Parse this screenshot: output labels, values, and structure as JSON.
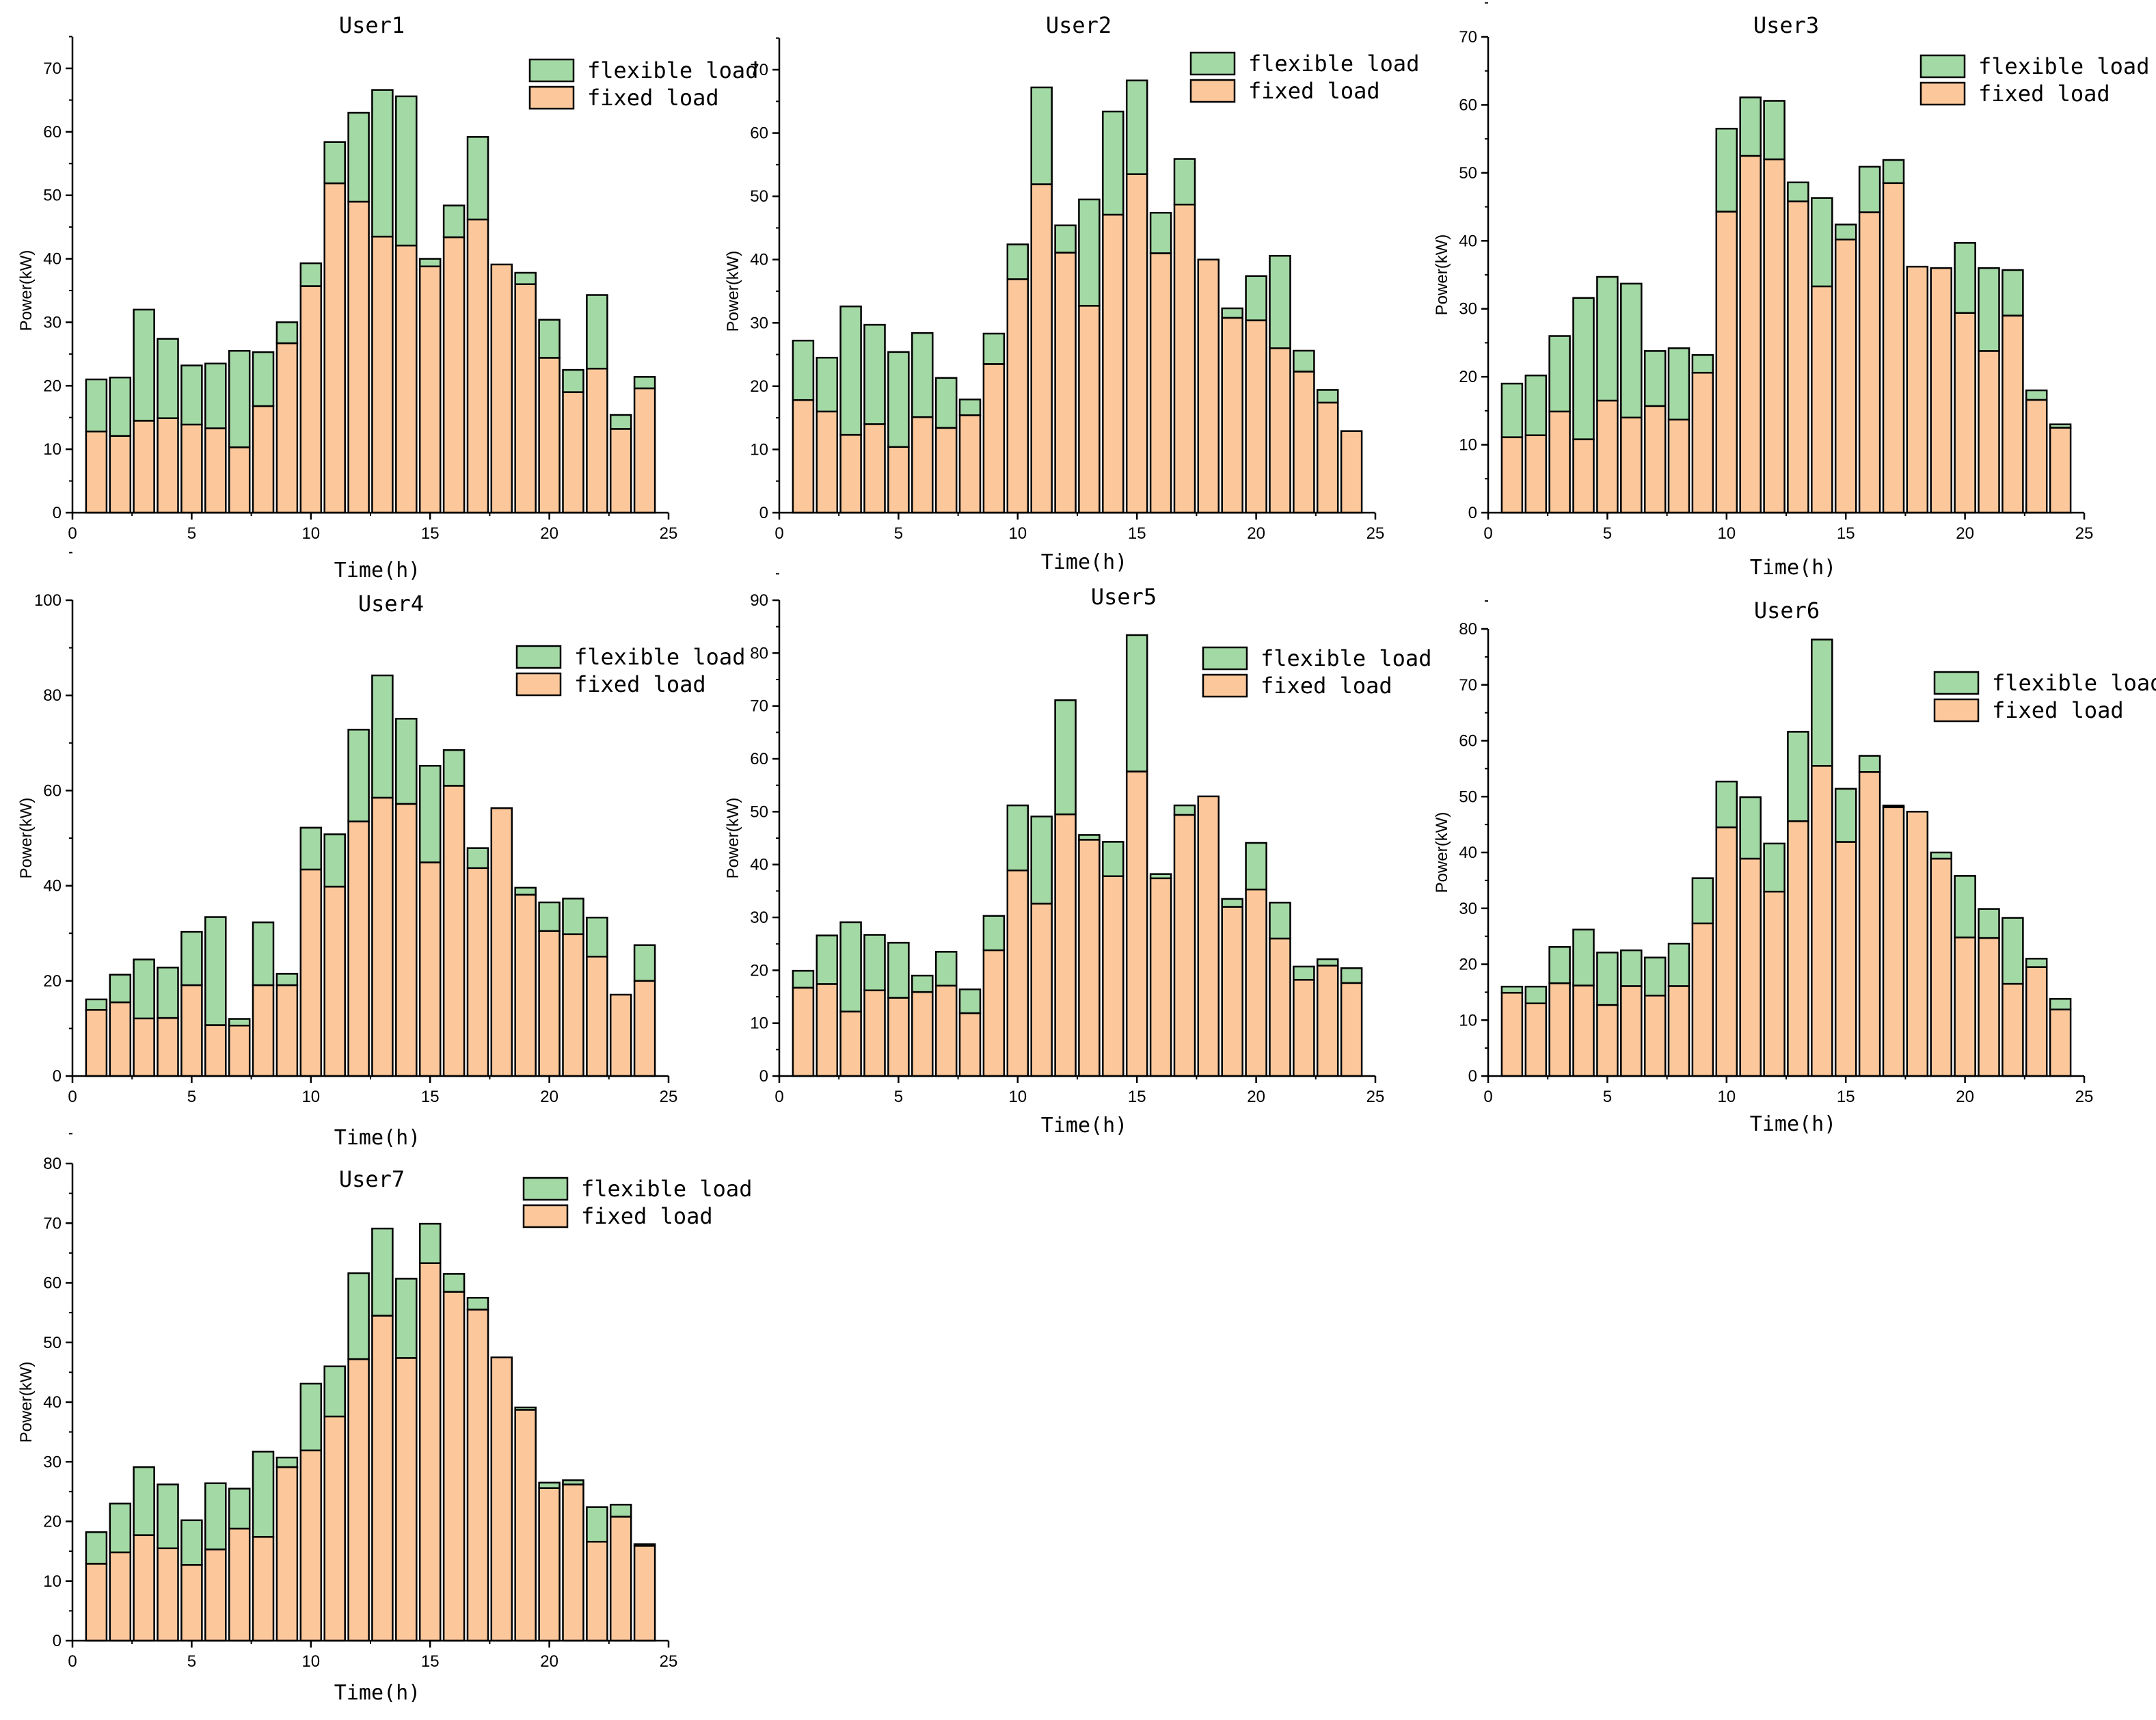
{
  "colors": {
    "flexible": "#a3d9a5",
    "fixed": "#fcc89b",
    "stroke": "#000000"
  },
  "chart_data": [
    {
      "type": "bar",
      "stacked": true,
      "title": "User1",
      "xlabel": "Time(h)",
      "ylabel": "Power(kW)",
      "xlim": [
        0,
        25
      ],
      "ylim": [
        0,
        75
      ],
      "xticks": [
        0,
        5,
        10,
        15,
        20,
        25
      ],
      "yticks": [
        0,
        10,
        20,
        30,
        40,
        50,
        60,
        70
      ],
      "legend": "top-right",
      "x": [
        1,
        2,
        3,
        4,
        5,
        6,
        7,
        8,
        9,
        10,
        11,
        12,
        13,
        14,
        15,
        16,
        17,
        18,
        19,
        20,
        21,
        22,
        23,
        24
      ],
      "series": [
        {
          "name": "flexible load",
          "values": [
            8.2,
            9.2,
            17.5,
            12.5,
            9.3,
            10.2,
            15.2,
            8.5,
            3.3,
            3.6,
            6.5,
            14.0,
            23.1,
            23.5,
            1.2,
            5.0,
            13.0,
            0.0,
            1.8,
            6.0,
            3.5,
            11.6,
            2.2,
            1.8
          ]
        },
        {
          "name": "fixed load",
          "values": [
            12.8,
            12.1,
            14.5,
            14.9,
            13.9,
            13.3,
            10.3,
            16.8,
            26.7,
            35.7,
            51.9,
            49.0,
            43.5,
            42.1,
            38.8,
            43.4,
            46.2,
            39.1,
            36.0,
            24.4,
            19.0,
            22.7,
            13.2,
            19.6
          ]
        }
      ]
    },
    {
      "type": "bar",
      "stacked": true,
      "title": "User2",
      "xlabel": "Time(h)",
      "ylabel": "Power(kW)",
      "xlim": [
        0,
        25
      ],
      "ylim": [
        0,
        75
      ],
      "xticks": [
        0,
        5,
        10,
        15,
        20,
        25
      ],
      "yticks": [
        0,
        10,
        20,
        30,
        40,
        50,
        60,
        70
      ],
      "legend": "top-right",
      "x": [
        1,
        2,
        3,
        4,
        5,
        6,
        7,
        8,
        9,
        10,
        11,
        12,
        13,
        14,
        15,
        16,
        17,
        18,
        19,
        20,
        21,
        22,
        23,
        24
      ],
      "series": [
        {
          "name": "flexible load",
          "values": [
            9.4,
            8.5,
            20.3,
            15.7,
            15.0,
            13.3,
            7.9,
            2.5,
            4.8,
            5.5,
            15.3,
            4.3,
            16.8,
            16.3,
            14.8,
            6.4,
            7.2,
            0.0,
            1.5,
            7.0,
            14.6,
            3.3,
            2.0,
            0.0
          ]
        },
        {
          "name": "fixed load",
          "values": [
            17.8,
            16.0,
            12.3,
            14.0,
            10.4,
            15.1,
            13.4,
            15.4,
            23.5,
            36.9,
            51.9,
            41.1,
            32.7,
            47.1,
            53.5,
            41.0,
            48.7,
            40.0,
            30.8,
            30.4,
            26.0,
            22.3,
            17.4,
            12.9
          ]
        }
      ]
    },
    {
      "type": "bar",
      "stacked": true,
      "title": "User3",
      "xlabel": "Time(h)",
      "ylabel": "Power(kW)",
      "xlim": [
        0,
        25
      ],
      "ylim": [
        0,
        70
      ],
      "xticks": [
        0,
        5,
        10,
        15,
        20,
        25
      ],
      "yticks": [
        0,
        10,
        20,
        30,
        40,
        50,
        60,
        70
      ],
      "legend": "top-right",
      "x": [
        1,
        2,
        3,
        4,
        5,
        6,
        7,
        8,
        9,
        10,
        11,
        12,
        13,
        14,
        15,
        16,
        17,
        18,
        19,
        20,
        21,
        22,
        23,
        24
      ],
      "series": [
        {
          "name": "flexible load",
          "values": [
            7.9,
            8.8,
            11.1,
            20.8,
            18.2,
            19.7,
            8.1,
            10.5,
            2.6,
            12.2,
            8.6,
            8.6,
            2.8,
            13.0,
            2.2,
            6.7,
            3.4,
            0.0,
            0.0,
            10.3,
            12.2,
            6.7,
            1.4,
            0.5
          ]
        },
        {
          "name": "fixed load",
          "values": [
            11.1,
            11.4,
            14.9,
            10.8,
            16.5,
            14.0,
            15.7,
            13.7,
            20.6,
            44.3,
            52.5,
            52.0,
            45.8,
            33.3,
            40.2,
            44.2,
            48.5,
            36.2,
            36.0,
            29.4,
            23.8,
            29.0,
            16.6,
            12.5
          ]
        }
      ]
    },
    {
      "type": "bar",
      "stacked": true,
      "title": "User4",
      "xlabel": "Time(h)",
      "ylabel": "Power(kW)",
      "xlim": [
        0,
        25
      ],
      "ylim": [
        0,
        100
      ],
      "xticks": [
        0,
        5,
        10,
        15,
        20,
        25
      ],
      "yticks": [
        0,
        20,
        40,
        60,
        80,
        100
      ],
      "legend": "top-right",
      "x": [
        1,
        2,
        3,
        4,
        5,
        6,
        7,
        8,
        9,
        10,
        11,
        12,
        13,
        14,
        15,
        16,
        17,
        18,
        19,
        20,
        21,
        22,
        23,
        24
      ],
      "series": [
        {
          "name": "flexible load",
          "values": [
            2.2,
            5.8,
            12.4,
            10.6,
            11.2,
            22.7,
            1.4,
            13.2,
            2.4,
            8.8,
            11.0,
            19.3,
            25.7,
            17.9,
            20.3,
            7.5,
            4.2,
            0.0,
            1.5,
            6.0,
            7.5,
            8.2,
            0.0,
            7.5
          ]
        },
        {
          "name": "fixed load",
          "values": [
            13.9,
            15.5,
            12.1,
            12.2,
            19.1,
            10.7,
            10.6,
            19.1,
            19.1,
            43.4,
            39.8,
            53.5,
            58.5,
            57.2,
            44.9,
            61.0,
            43.7,
            56.3,
            38.1,
            30.5,
            29.8,
            25.1,
            17.1,
            20.0
          ]
        }
      ]
    },
    {
      "type": "bar",
      "stacked": true,
      "title": "User5",
      "xlabel": "Time(h)",
      "ylabel": "Power(kW)",
      "xlim": [
        0,
        25
      ],
      "ylim": [
        0,
        90
      ],
      "xticks": [
        0,
        5,
        10,
        15,
        20,
        25
      ],
      "yticks": [
        0,
        10,
        20,
        30,
        40,
        50,
        60,
        70,
        80,
        90
      ],
      "legend": "top-right",
      "x": [
        1,
        2,
        3,
        4,
        5,
        6,
        7,
        8,
        9,
        10,
        11,
        12,
        13,
        14,
        15,
        16,
        17,
        18,
        19,
        20,
        21,
        22,
        23,
        24
      ],
      "series": [
        {
          "name": "flexible load",
          "values": [
            3.2,
            9.2,
            16.9,
            10.5,
            10.4,
            3.1,
            6.4,
            4.5,
            6.5,
            12.3,
            16.5,
            21.6,
            0.9,
            6.5,
            25.8,
            0.8,
            1.8,
            0.0,
            1.5,
            8.8,
            6.8,
            2.5,
            1.2,
            2.8
          ]
        },
        {
          "name": "fixed load",
          "values": [
            16.7,
            17.4,
            12.2,
            16.2,
            14.8,
            15.9,
            17.1,
            11.9,
            23.8,
            38.9,
            32.6,
            49.5,
            44.7,
            37.8,
            57.6,
            37.4,
            49.4,
            52.9,
            32.0,
            35.3,
            26.0,
            18.2,
            20.9,
            17.6
          ]
        }
      ]
    },
    {
      "type": "bar",
      "stacked": true,
      "title": "User6",
      "xlabel": "Time(h)",
      "ylabel": "Power(kW)",
      "xlim": [
        0,
        25
      ],
      "ylim": [
        0,
        85
      ],
      "xticks": [
        0,
        5,
        10,
        15,
        20,
        25
      ],
      "yticks": [
        0,
        10,
        20,
        30,
        40,
        50,
        60,
        70,
        80
      ],
      "legend": "top-right",
      "x": [
        1,
        2,
        3,
        4,
        5,
        6,
        7,
        8,
        9,
        10,
        11,
        12,
        13,
        14,
        15,
        16,
        17,
        18,
        19,
        20,
        21,
        22,
        23,
        24
      ],
      "series": [
        {
          "name": "flexible load",
          "values": [
            1.1,
            3.0,
            6.5,
            10.0,
            9.4,
            6.4,
            6.8,
            7.6,
            8.1,
            8.2,
            11.0,
            8.6,
            16.0,
            22.6,
            9.5,
            2.9,
            0.3,
            0.0,
            1.1,
            11.0,
            5.2,
            11.8,
            1.5,
            1.9
          ]
        },
        {
          "name": "fixed load",
          "values": [
            14.9,
            13.0,
            16.6,
            16.2,
            12.7,
            16.1,
            14.4,
            16.1,
            27.3,
            44.5,
            38.9,
            33.0,
            45.6,
            55.5,
            41.9,
            54.4,
            48.1,
            47.3,
            38.9,
            24.8,
            24.7,
            16.5,
            19.5,
            11.9
          ]
        }
      ]
    },
    {
      "type": "bar",
      "stacked": true,
      "title": "User7",
      "xlabel": "Time(h)",
      "ylabel": "Power(kW)",
      "xlim": [
        0,
        25
      ],
      "ylim": [
        0,
        80
      ],
      "xticks": [
        0,
        5,
        10,
        15,
        20,
        25
      ],
      "yticks": [
        0,
        10,
        20,
        30,
        40,
        50,
        60,
        70,
        80
      ],
      "legend": "top-right",
      "x": [
        1,
        2,
        3,
        4,
        5,
        6,
        7,
        8,
        9,
        10,
        11,
        12,
        13,
        14,
        15,
        16,
        17,
        18,
        19,
        20,
        21,
        22,
        23,
        24
      ],
      "series": [
        {
          "name": "flexible load",
          "values": [
            5.3,
            8.2,
            11.4,
            10.7,
            7.5,
            11.1,
            6.7,
            14.3,
            1.6,
            11.2,
            8.4,
            14.4,
            14.6,
            13.3,
            6.6,
            3.0,
            2.0,
            0.0,
            0.4,
            0.9,
            0.7,
            5.8,
            2.0,
            0.3
          ]
        },
        {
          "name": "fixed load",
          "values": [
            12.9,
            14.8,
            17.7,
            15.5,
            12.7,
            15.3,
            18.8,
            17.4,
            29.1,
            31.9,
            37.6,
            47.2,
            54.5,
            47.4,
            63.3,
            58.5,
            55.5,
            47.5,
            38.7,
            25.6,
            26.2,
            16.6,
            20.8,
            15.9
          ]
        }
      ]
    }
  ]
}
